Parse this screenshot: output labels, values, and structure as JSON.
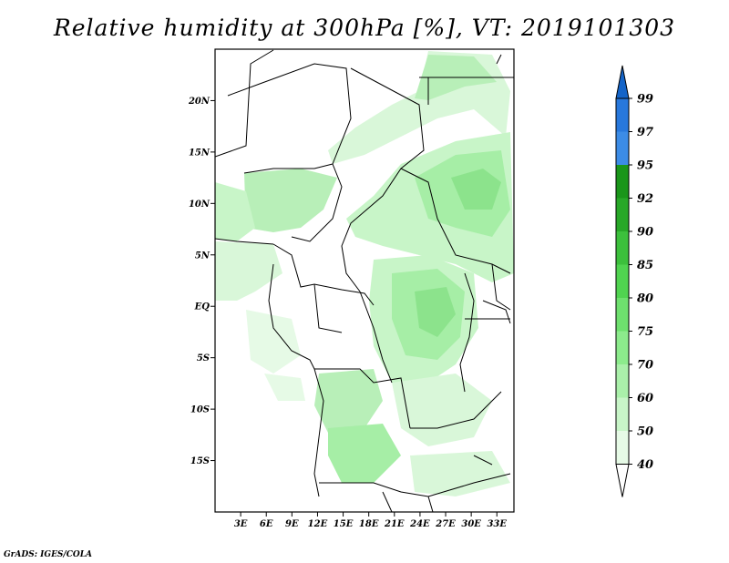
{
  "title": "Relative humidity at 300hPa [%], VT: 2019101303",
  "credit": "GrADS: IGES/COLA",
  "map": {
    "lat_labels": [
      "20N",
      "15N",
      "10N",
      "5N",
      "EQ",
      "5S",
      "10S",
      "15S"
    ],
    "lat_values": [
      20,
      15,
      10,
      5,
      0,
      -5,
      -10,
      -15
    ],
    "lon_labels": [
      "3E",
      "6E",
      "9E",
      "12E",
      "15E",
      "18E",
      "21E",
      "24E",
      "27E",
      "30E",
      "33E"
    ],
    "lon_values": [
      3,
      6,
      9,
      12,
      15,
      18,
      21,
      24,
      27,
      30,
      33
    ],
    "lon_range": [
      0,
      35
    ],
    "lat_range": [
      -20,
      25
    ]
  },
  "colorbar": {
    "labels": [
      "40",
      "50",
      "60",
      "70",
      "75",
      "80",
      "85",
      "90",
      "92",
      "95",
      "97",
      "99"
    ],
    "colors": [
      "#e6fae6",
      "#c8f5c8",
      "#aaf0aa",
      "#8ceb8c",
      "#6ee06e",
      "#50d450",
      "#3cc03c",
      "#28a828",
      "#1a961a",
      "#3c8ce6",
      "#2878dc",
      "#1464c8"
    ],
    "below_color": "#ffffff",
    "above_color": "#1464c8"
  }
}
